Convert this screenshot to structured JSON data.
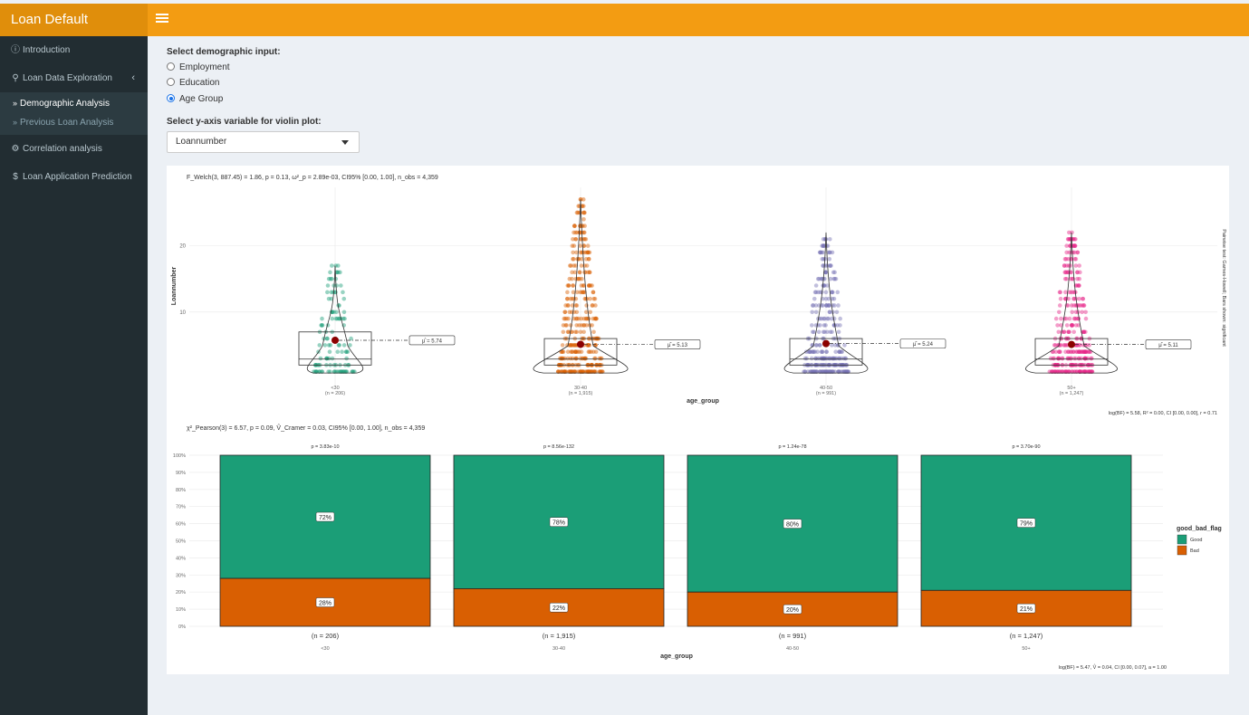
{
  "app": {
    "title": "Loan Default Prediction"
  },
  "sidebar": {
    "items": [
      {
        "label": "Introduction",
        "icon": "info-circle-icon"
      },
      {
        "label": "Loan Data Exploration",
        "icon": "search-icon"
      },
      {
        "label": "Correlation analysis",
        "icon": "cogs-icon"
      },
      {
        "label": "Loan Application Prediction",
        "icon": "dollar-icon"
      }
    ],
    "subitems": [
      {
        "label": "Demographic Analysis",
        "active": true
      },
      {
        "label": "Previous Loan Analysis",
        "active": false
      }
    ]
  },
  "controls": {
    "demographic_label": "Select demographic input:",
    "options": [
      {
        "label": "Employment",
        "selected": false
      },
      {
        "label": "Education",
        "selected": false
      },
      {
        "label": "Age Group",
        "selected": true
      }
    ],
    "yaxis_label": "Select y-axis variable for violin plot:",
    "yaxis_value": "Loannumber"
  },
  "violin": {
    "stat_text": "F_Welch(3, 887.45) = 1.86, p = 0.13, ω²_p = 2.89e-03, CI95% [0.00, 1.00], n_obs = 4,359",
    "ylabel": "Loannumber",
    "xlabel": "age_group",
    "yticks": [
      10,
      20
    ],
    "right_note": "Pairwise test: Games-Howell; Bars shown: significant",
    "bayes_text": "log(BF) = 5.58, R² = 0.00, CI [0.00, 0.00], r = 0.71",
    "colors": [
      "#1b9e77",
      "#d95f02",
      "#7570b3",
      "#e7298a"
    ]
  },
  "bar": {
    "stat_text": "χ²_Pearson(3) = 6.57, p = 0.09, V̂_Cramer = 0.03, CI95% [0.00, 1.00], n_obs = 4,359",
    "xlabel": "age_group",
    "yticks": [
      "0%",
      "10%",
      "20%",
      "30%",
      "40%",
      "50%",
      "60%",
      "70%",
      "80%",
      "90%",
      "100%"
    ],
    "legend_title": "good_bad_flag",
    "legend": [
      {
        "label": "Good",
        "color": "#1b9e77"
      },
      {
        "label": "Bad",
        "color": "#d95f02"
      }
    ],
    "bayes_text": "log(BF) = 5.47, V̂ = 0.04, CI [0.00, 0.07], a = 1.00"
  },
  "chart_data": [
    {
      "type": "violin",
      "xlabel": "age_group",
      "ylabel": "Loannumber",
      "categories": [
        "<30",
        "30-40",
        "40-50",
        "50+"
      ],
      "n_labels": [
        "(n = 206)",
        "(n = 1,915)",
        "(n = 991)",
        "(n = 1,247)"
      ],
      "means": [
        5.74,
        5.13,
        5.24,
        5.11
      ],
      "mean_labels": [
        "μ̂ = 5.74",
        "μ̂ = 5.13",
        "μ̂ = 5.24",
        "μ̂ = 5.11"
      ],
      "max_values": [
        17,
        27,
        22,
        22
      ],
      "ylim": [
        0,
        28
      ]
    },
    {
      "type": "bar",
      "stacked": true,
      "xlabel": "age_group",
      "categories": [
        "<30",
        "30-40",
        "40-50",
        "50+"
      ],
      "n_labels": [
        "(n = 206)",
        "(n = 1,915)",
        "(n = 991)",
        "(n = 1,247)"
      ],
      "p_labels": [
        "p = 3.83e-10",
        "p = 8.56e-132",
        "p = 1.24e-78",
        "p = 3.70e-90"
      ],
      "series": [
        {
          "name": "Good",
          "values": [
            72,
            78,
            80,
            79
          ]
        },
        {
          "name": "Bad",
          "values": [
            28,
            22,
            20,
            21
          ]
        }
      ],
      "ylim": [
        0,
        100
      ]
    }
  ]
}
